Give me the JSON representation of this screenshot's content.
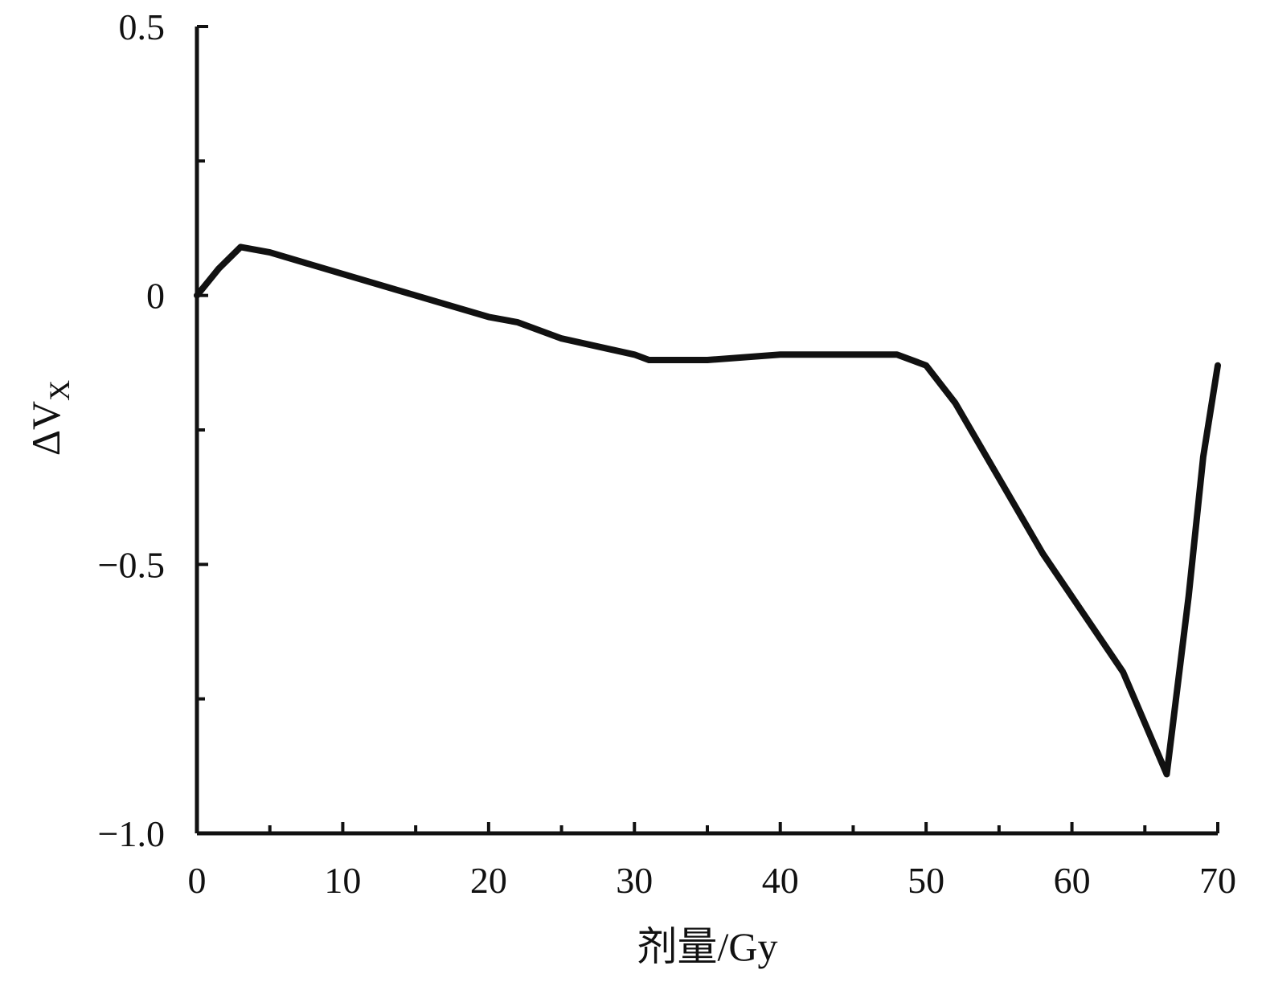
{
  "chart_data": {
    "type": "line",
    "title": "",
    "xlabel": "剂量/Gy",
    "ylabel": {
      "main": "ΔV",
      "subscript": "X"
    },
    "xlim": [
      0,
      70
    ],
    "ylim": [
      -1.0,
      0.5
    ],
    "x_ticks": [
      0,
      10,
      20,
      30,
      40,
      50,
      60,
      70
    ],
    "x_minor_ticks": [
      5,
      15,
      25,
      35,
      45,
      55,
      65
    ],
    "x_tick_labels": [
      "0",
      "10",
      "20",
      "30",
      "40",
      "50",
      "60",
      "70"
    ],
    "y_ticks": [
      -1.0,
      -0.5,
      0,
      0.5
    ],
    "y_minor_ticks": [
      -0.75,
      -0.25,
      0.25
    ],
    "y_tick_labels": [
      "−1.0",
      "−0.5",
      "0",
      "0.5"
    ],
    "grid": false,
    "series": [
      {
        "color": "#111111",
        "x": [
          0,
          1.5,
          3,
          5,
          10,
          15,
          20,
          22,
          25,
          30,
          31,
          35,
          40,
          45,
          48,
          50,
          52,
          55,
          58,
          60,
          63.5,
          66.5,
          68,
          69,
          70
        ],
        "y": [
          0.0,
          0.05,
          0.09,
          0.08,
          0.04,
          0.0,
          -0.04,
          -0.05,
          -0.08,
          -0.11,
          -0.12,
          -0.12,
          -0.11,
          -0.11,
          -0.11,
          -0.13,
          -0.2,
          -0.34,
          -0.48,
          -0.56,
          -0.7,
          -0.89,
          -0.56,
          -0.3,
          -0.13
        ]
      }
    ]
  }
}
